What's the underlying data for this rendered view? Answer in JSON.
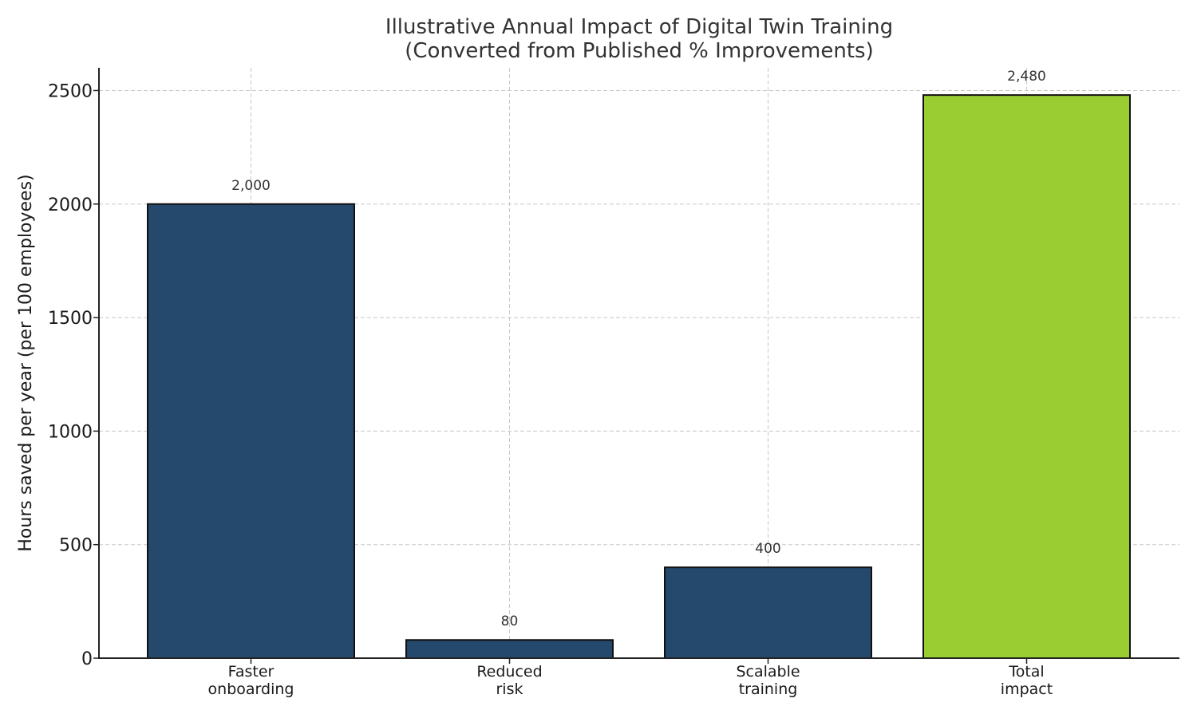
{
  "chart_data": {
    "type": "bar",
    "title": [
      "Illustrative Annual Impact of Digital Twin Training",
      "(Converted from Published % Improvements)"
    ],
    "ylabel": "Hours saved per year (per 100 employees)",
    "xlabel": "",
    "categories": [
      [
        "Faster",
        "onboarding"
      ],
      [
        "Reduced",
        "risk"
      ],
      [
        "Scalable",
        "training"
      ],
      [
        "Total",
        "impact"
      ]
    ],
    "values": [
      2000,
      80,
      400,
      2480
    ],
    "value_labels": [
      "2,000",
      "80",
      "400",
      "2,480"
    ],
    "colors": [
      "#25486d",
      "#25486d",
      "#25486d",
      "#9acd32"
    ],
    "ylim": [
      0,
      2600
    ],
    "yticks": [
      0,
      500,
      1000,
      1500,
      2000,
      2500
    ],
    "grid": true
  }
}
